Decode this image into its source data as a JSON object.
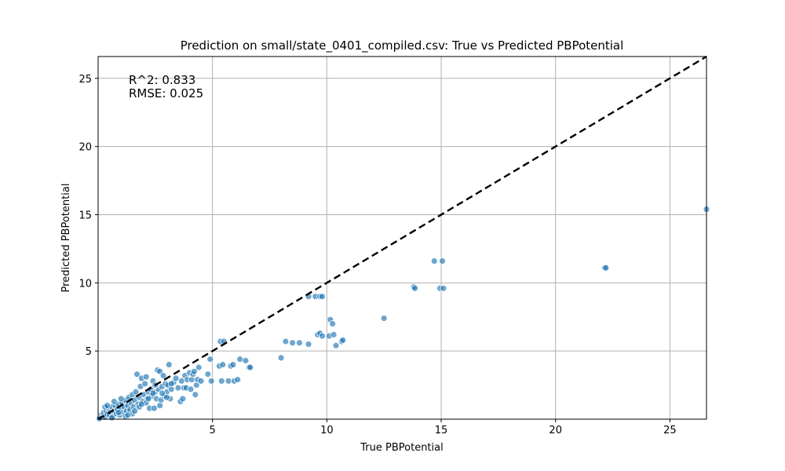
{
  "chart_data": {
    "type": "scatter",
    "title": "Prediction on small/state_0401_compiled.csv: True vs Predicted PBPotential",
    "xlabel": "True PBPotential",
    "ylabel": "Predicted PBPotential",
    "xlim": [
      0,
      26.6
    ],
    "ylim": [
      0,
      26.6
    ],
    "xticks": [
      5,
      10,
      15,
      20,
      25
    ],
    "yticks": [
      5,
      10,
      15,
      20,
      25
    ],
    "grid": true,
    "point_color": "#1f77b4",
    "reference_line": {
      "style": "dashed",
      "color": "#000000",
      "from": [
        0,
        0
      ],
      "to": [
        26.6,
        26.6
      ]
    },
    "annotation": {
      "r2": "R^2: 0.833",
      "rmse": "RMSE: 0.025"
    },
    "points": [
      [
        0.1,
        0.1
      ],
      [
        0.15,
        0.3
      ],
      [
        0.2,
        0.2
      ],
      [
        0.25,
        0.5
      ],
      [
        0.3,
        0.15
      ],
      [
        0.35,
        0.6
      ],
      [
        0.4,
        0.35
      ],
      [
        0.45,
        0.8
      ],
      [
        0.5,
        0.3
      ],
      [
        0.55,
        0.5
      ],
      [
        0.6,
        0.9
      ],
      [
        0.65,
        0.2
      ],
      [
        0.7,
        0.6
      ],
      [
        0.75,
        1.0
      ],
      [
        0.8,
        0.4
      ],
      [
        0.85,
        0.7
      ],
      [
        0.9,
        1.1
      ],
      [
        0.95,
        0.3
      ],
      [
        1.0,
        0.8
      ],
      [
        1.05,
        1.2
      ],
      [
        1.1,
        0.5
      ],
      [
        1.15,
        0.9
      ],
      [
        1.2,
        1.4
      ],
      [
        1.25,
        0.6
      ],
      [
        1.3,
        1.0
      ],
      [
        1.35,
        1.6
      ],
      [
        1.4,
        0.7
      ],
      [
        1.45,
        1.2
      ],
      [
        1.5,
        1.8
      ],
      [
        1.55,
        0.9
      ],
      [
        1.6,
        1.4
      ],
      [
        1.65,
        2.0
      ],
      [
        1.7,
        3.3
      ],
      [
        1.75,
        1.1
      ],
      [
        1.8,
        1.6
      ],
      [
        1.85,
        2.4
      ],
      [
        1.9,
        3.0
      ],
      [
        1.95,
        1.3
      ],
      [
        2.0,
        1.8
      ],
      [
        2.05,
        2.6
      ],
      [
        2.1,
        3.1
      ],
      [
        2.15,
        1.5
      ],
      [
        2.2,
        2.0
      ],
      [
        2.25,
        0.8
      ],
      [
        2.3,
        2.2
      ],
      [
        2.35,
        1.7
      ],
      [
        2.4,
        2.8
      ],
      [
        2.45,
        0.8
      ],
      [
        2.5,
        2.0
      ],
      [
        2.55,
        1.5
      ],
      [
        2.6,
        3.6
      ],
      [
        2.65,
        2.2
      ],
      [
        2.7,
        3.5
      ],
      [
        2.75,
        1.4
      ],
      [
        2.8,
        2.4
      ],
      [
        2.85,
        3.2
      ],
      [
        2.9,
        1.7
      ],
      [
        2.95,
        2.6
      ],
      [
        3.0,
        2.0
      ],
      [
        3.05,
        2.5
      ],
      [
        3.1,
        4.0
      ],
      [
        3.15,
        1.5
      ],
      [
        3.2,
        2.2
      ],
      [
        3.3,
        2.7
      ],
      [
        3.4,
        3.0
      ],
      [
        3.5,
        2.3
      ],
      [
        3.6,
        1.3
      ],
      [
        3.65,
        2.8
      ],
      [
        3.7,
        1.5
      ],
      [
        3.75,
        2.3
      ],
      [
        3.8,
        3.2
      ],
      [
        3.85,
        2.3
      ],
      [
        3.9,
        2.9
      ],
      [
        4.0,
        3.4
      ],
      [
        4.05,
        2.2
      ],
      [
        4.1,
        2.9
      ],
      [
        4.15,
        3.3
      ],
      [
        4.2,
        3.5
      ],
      [
        4.25,
        1.8
      ],
      [
        4.3,
        2.5
      ],
      [
        4.35,
        2.9
      ],
      [
        4.4,
        3.8
      ],
      [
        4.5,
        2.8
      ],
      [
        4.8,
        3.3
      ],
      [
        4.9,
        4.4
      ],
      [
        4.95,
        2.8
      ],
      [
        5.3,
        3.9
      ],
      [
        5.35,
        5.7
      ],
      [
        5.4,
        2.8
      ],
      [
        5.45,
        4.0
      ],
      [
        5.5,
        5.7
      ],
      [
        5.7,
        2.8
      ],
      [
        5.8,
        3.9
      ],
      [
        5.9,
        4.0
      ],
      [
        5.95,
        2.8
      ],
      [
        6.1,
        2.9
      ],
      [
        6.2,
        4.4
      ],
      [
        6.45,
        4.3
      ],
      [
        6.6,
        3.8
      ],
      [
        6.65,
        3.8
      ],
      [
        8.0,
        4.5
      ],
      [
        8.2,
        5.7
      ],
      [
        8.5,
        5.6
      ],
      [
        8.8,
        5.6
      ],
      [
        9.2,
        5.5
      ],
      [
        9.2,
        9.0
      ],
      [
        9.5,
        9.0
      ],
      [
        9.7,
        9.0
      ],
      [
        9.8,
        9.0
      ],
      [
        9.6,
        6.2
      ],
      [
        9.7,
        6.3
      ],
      [
        9.8,
        6.1
      ],
      [
        10.1,
        6.1
      ],
      [
        10.15,
        7.3
      ],
      [
        10.25,
        7.0
      ],
      [
        10.3,
        6.2
      ],
      [
        10.4,
        5.4
      ],
      [
        10.65,
        5.7
      ],
      [
        10.7,
        5.8
      ],
      [
        12.5,
        7.4
      ],
      [
        13.8,
        9.7
      ],
      [
        13.85,
        9.6
      ],
      [
        14.7,
        11.6
      ],
      [
        14.95,
        9.6
      ],
      [
        15.05,
        11.6
      ],
      [
        15.1,
        9.6
      ],
      [
        22.15,
        11.1
      ],
      [
        22.2,
        11.1
      ],
      [
        26.6,
        15.4
      ],
      [
        0.05,
        0.05
      ],
      [
        0.3,
        0.9
      ],
      [
        0.6,
        0.1
      ],
      [
        0.9,
        0.5
      ],
      [
        1.2,
        0.2
      ],
      [
        1.5,
        0.4
      ],
      [
        1.8,
        0.9
      ],
      [
        2.1,
        1.2
      ],
      [
        2.4,
        1.9
      ],
      [
        2.7,
        1.0
      ],
      [
        3.0,
        1.6
      ],
      [
        0.4,
        1.0
      ],
      [
        0.7,
        1.3
      ],
      [
        1.0,
        1.5
      ],
      [
        1.3,
        0.3
      ],
      [
        1.6,
        0.6
      ],
      [
        1.9,
        1.1
      ],
      [
        2.2,
        1.5
      ],
      [
        2.5,
        2.5
      ],
      [
        2.8,
        1.9
      ],
      [
        3.2,
        2.6
      ]
    ]
  }
}
